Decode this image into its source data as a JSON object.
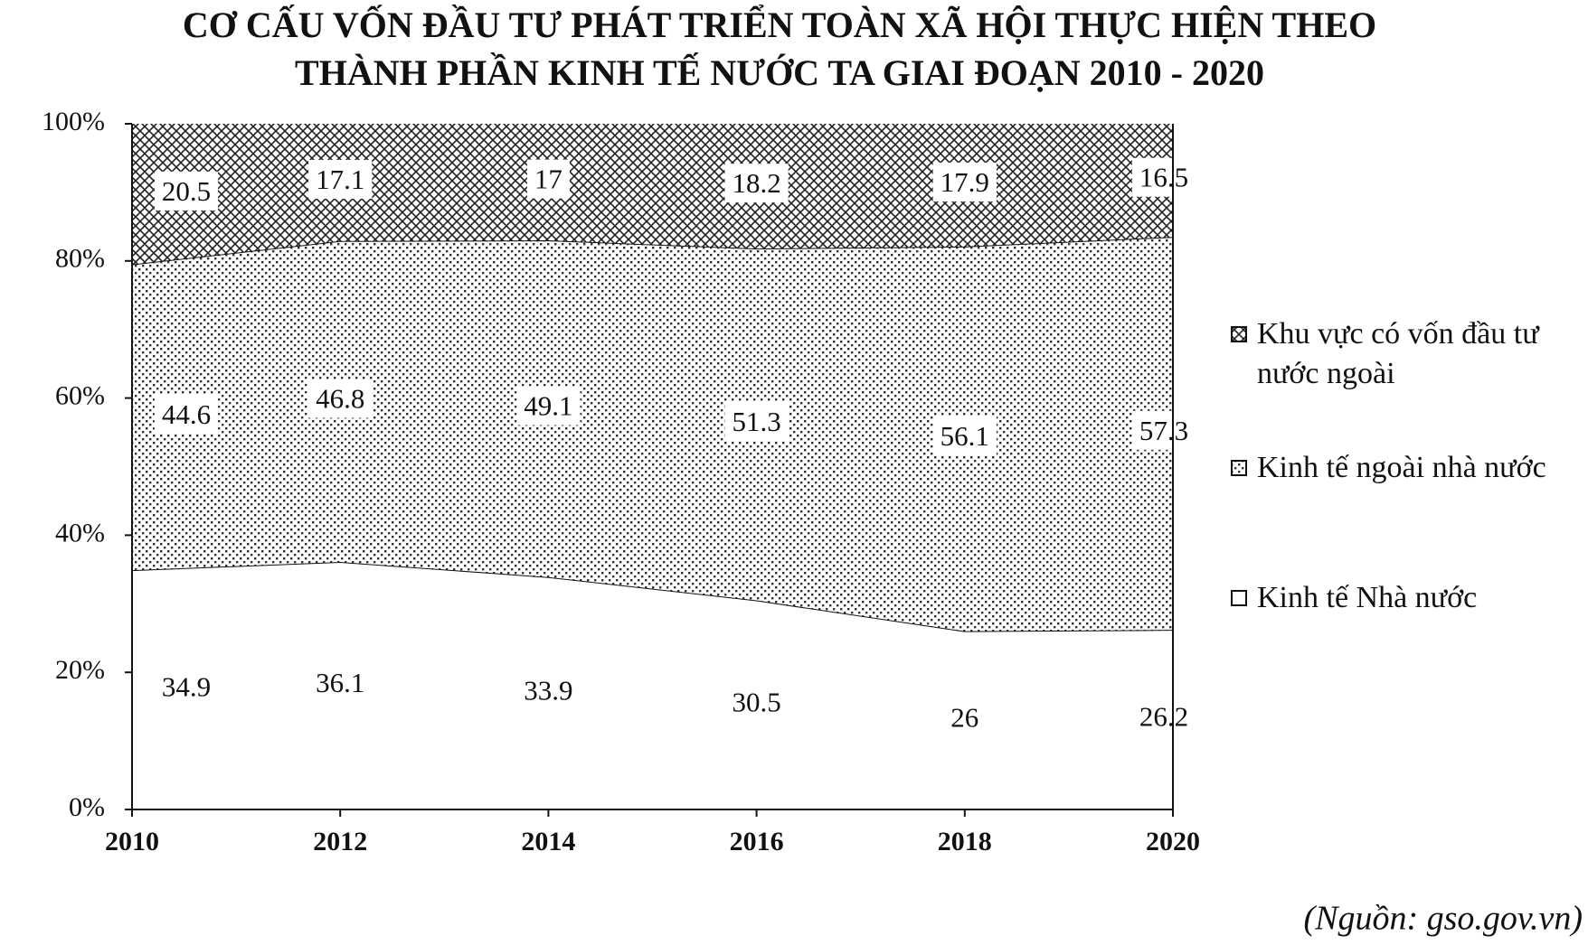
{
  "chart_data": {
    "type": "area",
    "stacked": true,
    "title": [
      "CƠ CẤU VỐN ĐẦU TƯ PHÁT TRIỂN TOÀN XÃ HỘI THỰC HIỆN THEO",
      "THÀNH PHẦN KINH TẾ NƯỚC TA GIAI ĐOẠN 2010 - 2020"
    ],
    "x": [
      2010,
      2012,
      2014,
      2016,
      2018,
      2020
    ],
    "xlim": [
      2010,
      2020
    ],
    "xticks": [
      2010,
      2012,
      2014,
      2016,
      2018,
      2020
    ],
    "ylim": [
      0,
      100
    ],
    "yticks": [
      {
        "value": 0,
        "label": "0%"
      },
      {
        "value": 20,
        "label": "20%"
      },
      {
        "value": 40,
        "label": "40%"
      },
      {
        "value": 60,
        "label": "60%"
      },
      {
        "value": 80,
        "label": "80%"
      },
      {
        "value": 100,
        "label": "100%"
      }
    ],
    "series": [
      {
        "name": "Kinh tế Nhà nước",
        "color": "#ffffff",
        "pattern": "none",
        "values": [
          34.9,
          36.1,
          33.9,
          30.5,
          26,
          26.2
        ]
      },
      {
        "name": "Kinh tế ngoài nhà nước",
        "color": "#000000",
        "pattern": "dots",
        "values": [
          44.6,
          46.8,
          49.1,
          51.3,
          56.1,
          57.3
        ]
      },
      {
        "name": "Khu vực có vốn đầu tư nước ngoài",
        "color": "#000000",
        "pattern": "crosshatch",
        "values": [
          20.5,
          17.1,
          17,
          18.2,
          17.9,
          16.5
        ]
      }
    ],
    "legend": "right",
    "source": "(Nguồn: gso.gov.vn)"
  }
}
